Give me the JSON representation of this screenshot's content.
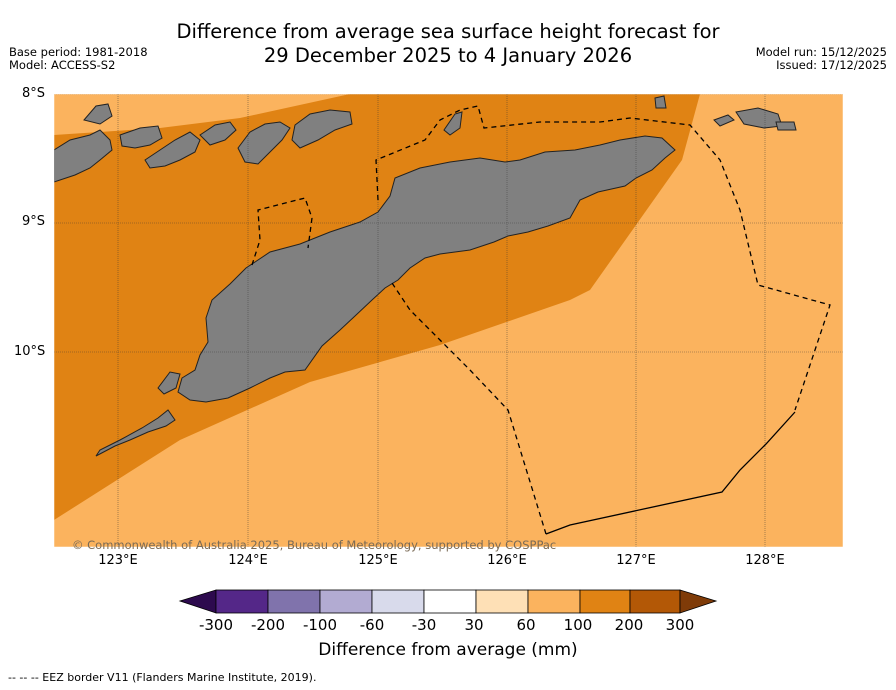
{
  "title": {
    "line1": "Difference from average sea surface height forecast for",
    "line2": "29 December 2025 to 4 January 2026"
  },
  "meta_left": {
    "base_period": "Base period: 1981-2018",
    "model": "Model: ACCESS-S2"
  },
  "meta_right": {
    "model_run": "Model run: 15/12/2025",
    "issued": "Issued: 17/12/2025"
  },
  "map": {
    "lat_labels": [
      "8°S",
      "9°S",
      "10°S"
    ],
    "lon_labels": [
      "123°E",
      "124°E",
      "125°E",
      "126°E",
      "127°E",
      "128°E"
    ],
    "copyright": "© Commonwealth of Australia 2025, Bureau of Meteorology, supported by COSPPac",
    "colors": {
      "band_100_200": "#e08314",
      "band_60_100": "#fbb35e",
      "land": "#808080"
    }
  },
  "colorbar": {
    "title": "Difference from average (mm)",
    "ticks": [
      "-300",
      "-200",
      "-100",
      "-60",
      "-30",
      "30",
      "60",
      "100",
      "200",
      "300"
    ],
    "colors": [
      "#2d0a4e",
      "#542788",
      "#8073ac",
      "#b2abd2",
      "#d8daeb",
      "#ffffff",
      "#fee0b6",
      "#fbb35e",
      "#e08314",
      "#b35806",
      "#7f3b08"
    ]
  },
  "footer": {
    "legend": "--  --  -- EEZ border V11 (Flanders Marine Institute, 2019)."
  }
}
